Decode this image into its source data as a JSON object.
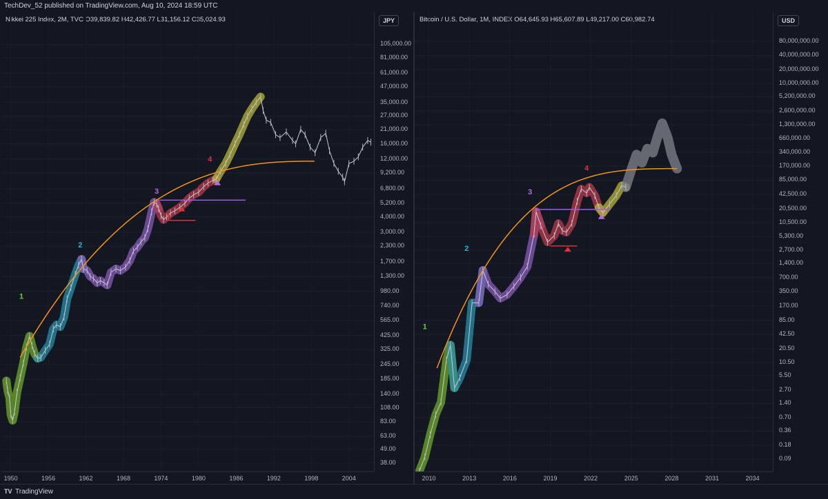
{
  "header": {
    "published": "TechDev_52 published on TradingView.com, Aug 10, 2024 18:59 UTC"
  },
  "footer": {
    "logo": "TV",
    "brand": "TradingView"
  },
  "chart_data": [
    {
      "type": "line",
      "legend": "Nikkei 225 Index, 2M, TVC",
      "ohlc": "O39,839.82  H42,426.77  L31,156.12  C35,024.93",
      "currency": "JPY",
      "scale": "log",
      "ylim": [
        35,
        130000
      ],
      "xlim": [
        1948.5,
        2008
      ],
      "y_ticks": [
        "105,000.00",
        "81,000.00",
        "61,000.00",
        "47,000.00",
        "35,000.00",
        "27,000.00",
        "21,000.00",
        "16,000.00",
        "12,000.00",
        "9,200.00",
        "6,800.00",
        "5,200.00",
        "4,000.00",
        "3,000.00",
        "2,300.00",
        "1,700.00",
        "1,300.00",
        "980.00",
        "740.00",
        "565.00",
        "425.00",
        "325.00",
        "245.00",
        "185.00",
        "140.00",
        "108.00",
        "83.00",
        "63.00",
        "49.00",
        "38.00"
      ],
      "x_ticks": [
        "1950",
        "1956",
        "1962",
        "1968",
        "1974",
        "1980",
        "1986",
        "1992",
        "1998",
        "2004"
      ],
      "series": [
        {
          "x": [
            1949.3,
            1949.5,
            1949.8,
            1950.0,
            1950.3,
            1950.6,
            1951.0,
            1951.5,
            1952.0,
            1952.5,
            1953.0,
            1953.4,
            1953.8,
            1954.3,
            1954.8,
            1955.5,
            1956.2,
            1956.8,
            1957.3,
            1957.9,
            1958.5,
            1959.0,
            1959.6,
            1960.3,
            1960.8,
            1961.3,
            1961.6,
            1962.2,
            1962.7,
            1963.2,
            1963.8,
            1964.3,
            1964.9,
            1965.4,
            1966.0,
            1966.8,
            1967.5,
            1968.3,
            1969.0,
            1969.6,
            1970.2,
            1970.8,
            1971.4,
            1971.9,
            1972.5,
            1972.9,
            1973.3,
            1973.6,
            1974.0,
            1974.4,
            1974.9,
            1975.5,
            1976.2,
            1977.0,
            1977.8,
            1978.5,
            1979.2,
            1980.0,
            1980.8,
            1981.5,
            1982.3,
            1982.8,
            1983.5,
            1984.3,
            1985.0,
            1985.8,
            1986.5,
            1987.2,
            1987.8,
            1988.5,
            1989.2,
            1989.9,
            1990.3,
            1990.8,
            1991.5,
            1992.3,
            1993.0,
            1994.0,
            1995.0,
            1995.5,
            1996.3,
            1997.0,
            1997.8,
            1998.6,
            1999.5,
            2000.3,
            2000.9,
            2001.6,
            2002.3,
            2003.0,
            2003.3,
            2004.0,
            2004.8,
            2005.5,
            2006.2,
            2007.0,
            2007.5
          ],
          "y": [
            180,
            150,
            130,
            95,
            85,
            100,
            145,
            190,
            250,
            340,
            420,
            350,
            300,
            275,
            280,
            320,
            360,
            480,
            520,
            500,
            600,
            850,
            1050,
            1350,
            1600,
            1800,
            1500,
            1450,
            1300,
            1250,
            1150,
            1200,
            1150,
            1100,
            1400,
            1500,
            1450,
            1550,
            1750,
            2100,
            2250,
            2500,
            2700,
            3200,
            4400,
            5300,
            5100,
            4700,
            4100,
            3800,
            4000,
            4300,
            4500,
            4800,
            5200,
            5700,
            6100,
            6400,
            7100,
            7600,
            8000,
            8200,
            9500,
            11000,
            13000,
            16000,
            19000,
            23000,
            27000,
            31000,
            35000,
            38900,
            30000,
            25000,
            24000,
            19000,
            18000,
            20000,
            17000,
            16000,
            21000,
            19000,
            15000,
            13500,
            18000,
            19500,
            14000,
            11000,
            9500,
            8500,
            7800,
            11000,
            11500,
            12500,
            15000,
            17000,
            16500
          ],
          "name": ""
        }
      ]
    },
    {
      "type": "line",
      "legend": "Bitcoin / U.S. Dollar, 1M, INDEX",
      "ohlc": "O64,645.93  H65,607.89  L49,217.00  C60,982.74",
      "currency": "USD",
      "scale": "log",
      "ylim": [
        0.06,
        120000000
      ],
      "xlim": [
        2009.0,
        2035.5
      ],
      "y_ticks": [
        "80,000,000.00",
        "40,000,000.00",
        "20,000,000.00",
        "10,000,000.00",
        "5,200,000.00",
        "2,600,000.00",
        "1,300,000.00",
        "660,000.00",
        "340,000.00",
        "170,000.00",
        "85,000.00",
        "42,500.00",
        "20,500.00",
        "10,500.00",
        "5,300.00",
        "2,700.00",
        "1,400.00",
        "700.00",
        "350.00",
        "170.00",
        "85.00",
        "42.50",
        "20.50",
        "10.50",
        "5.50",
        "2.70",
        "1.40",
        "0.70",
        "0.36",
        "0.18",
        "0.09"
      ],
      "x_ticks": [
        "2010",
        "2013",
        "2016",
        "2019",
        "2022",
        "2025",
        "2028",
        "2031",
        "2034"
      ],
      "series": [
        {
          "x": [
            2009.3,
            2009.7,
            2010.1,
            2010.5,
            2010.9,
            2011.3,
            2011.6,
            2011.9,
            2012.3,
            2012.8,
            2013.2,
            2013.7,
            2014.0,
            2014.4,
            2014.9,
            2015.3,
            2015.8,
            2016.3,
            2016.8,
            2017.3,
            2017.8,
            2017.95,
            2018.3,
            2018.8,
            2019.3,
            2019.6,
            2019.9,
            2020.2,
            2020.6,
            2021.0,
            2021.3,
            2021.7,
            2021.9,
            2022.3,
            2022.6,
            2022.9,
            2023.4,
            2023.9,
            2024.3,
            2024.6
          ],
          "y": [
            0.05,
            0.1,
            0.3,
            0.8,
            1.5,
            12,
            25,
            3,
            5,
            12,
            200,
            200,
            1000,
            500,
            350,
            250,
            300,
            450,
            700,
            1200,
            6000,
            18000,
            9000,
            4000,
            5500,
            10000,
            7000,
            6500,
            10000,
            30000,
            55000,
            45000,
            60000,
            40000,
            22000,
            17000,
            26000,
            40000,
            65000,
            60000
          ],
          "name": ""
        },
        {
          "x": [
            2024.6,
            2025.0,
            2025.4,
            2025.8,
            2026.2,
            2026.6,
            2027.0,
            2027.3,
            2027.7,
            2028.0,
            2028.4
          ],
          "y": [
            60000,
            140000,
            300000,
            200000,
            400000,
            330000,
            800000,
            1400000,
            700000,
            300000,
            150000
          ],
          "name": ""
        }
      ]
    }
  ]
}
